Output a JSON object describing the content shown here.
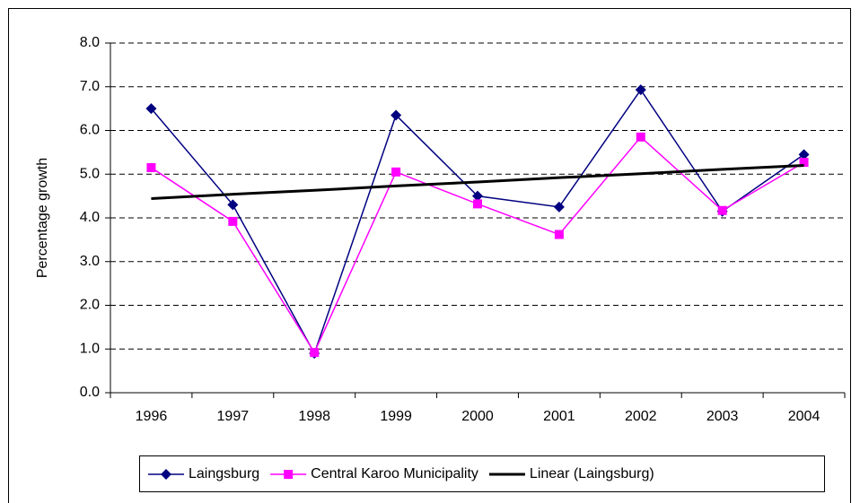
{
  "chart_data": {
    "type": "line",
    "y_label": "Percentage growth",
    "categories": [
      "1996",
      "1997",
      "1998",
      "1999",
      "2000",
      "2001",
      "2002",
      "2003",
      "2004"
    ],
    "series": [
      {
        "name": "Laingsburg",
        "color": "#000080",
        "marker": "diamond",
        "values": [
          6.5,
          4.3,
          0.9,
          6.35,
          4.5,
          4.25,
          6.93,
          4.15,
          5.45
        ]
      },
      {
        "name": "Central Karoo Municipality",
        "color": "#ff00ff",
        "marker": "square",
        "values": [
          5.15,
          3.92,
          0.92,
          5.05,
          4.32,
          3.62,
          5.85,
          4.17,
          5.27
        ]
      },
      {
        "name": "Linear (Laingsburg)",
        "color": "#000000",
        "marker": "none",
        "values": [
          4.44,
          4.54,
          4.63,
          4.73,
          4.82,
          4.92,
          5.01,
          5.11,
          5.2
        ]
      }
    ],
    "ylim": [
      0,
      8
    ],
    "yticks": [
      {
        "value": 0,
        "label": "0.0"
      },
      {
        "value": 1,
        "label": "1.0"
      },
      {
        "value": 2,
        "label": "2.0"
      },
      {
        "value": 3,
        "label": "3.0"
      },
      {
        "value": 4,
        "label": "4.0"
      },
      {
        "value": 5,
        "label": "5.0"
      },
      {
        "value": 6,
        "label": "6.0"
      },
      {
        "value": 7,
        "label": "7.0"
      },
      {
        "value": 8,
        "label": "8.0"
      }
    ],
    "grid": true,
    "legend": "bottom"
  }
}
